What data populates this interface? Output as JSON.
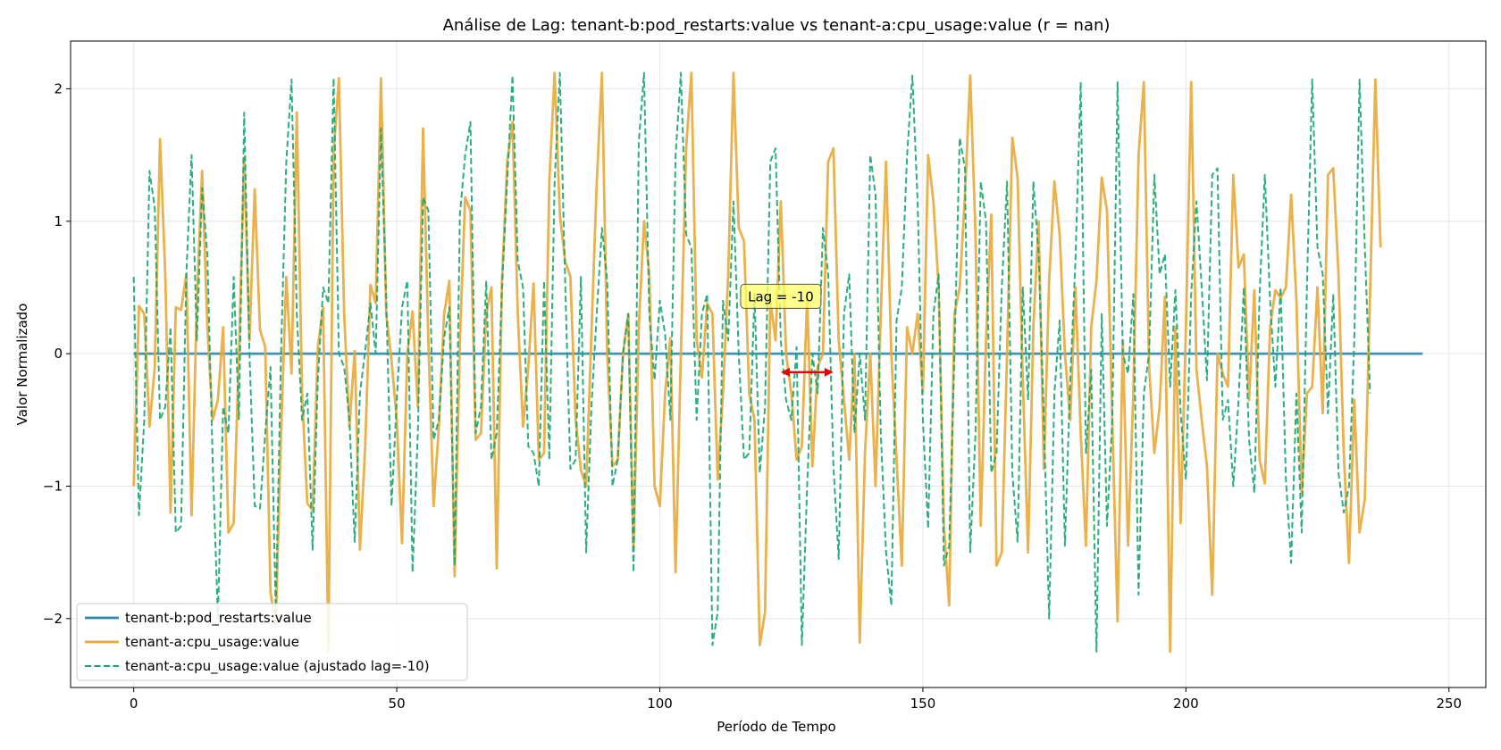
{
  "chart_data": {
    "type": "line",
    "title": "Análise de Lag: tenant-b:pod_restarts:value vs tenant-a:cpu_usage:value (r = nan)",
    "xlabel": "Período de Tempo",
    "ylabel": "Valor Normalizado",
    "xlim": [
      -12,
      257
    ],
    "ylim": [
      -2.52,
      2.36
    ],
    "xticks": [
      0,
      50,
      100,
      150,
      200,
      250
    ],
    "yticks": [
      -2,
      -1,
      0,
      1,
      2
    ],
    "xtick_labels": [
      "0",
      "50",
      "100",
      "150",
      "200",
      "250"
    ],
    "ytick_labels": [
      "−2",
      "−1",
      "0",
      "1",
      "2"
    ],
    "grid": true,
    "legend_position": "bottom-left",
    "series": [
      {
        "name": "tenant-b:pod_restarts:value",
        "color": "#2E86AB",
        "style": "solid",
        "x": [
          0,
          245
        ],
        "values": [
          0,
          0
        ]
      },
      {
        "name": "tenant-a:cpu_usage:value",
        "color": "#E8A838",
        "style": "solid",
        "x_start": 0,
        "values": [
          -1.0,
          0.36,
          0.3,
          -0.55,
          -0.1,
          1.62,
          0.6,
          -1.2,
          0.35,
          0.33,
          0.6,
          -1.22,
          0.4,
          1.38,
          0.2,
          -0.5,
          -0.35,
          0.2,
          -1.35,
          -1.28,
          0.0,
          1.48,
          0.1,
          1.24,
          0.18,
          0.05,
          -1.8,
          -2.05,
          -0.6,
          0.58,
          -0.15,
          1.82,
          -0.3,
          -1.13,
          -1.18,
          0.05,
          0.35,
          -2.25,
          1.52,
          2.08,
          0.3,
          -0.55,
          0.02,
          -1.48,
          -0.7,
          0.52,
          0.38,
          2.08,
          0.3,
          -0.05,
          -0.5,
          -1.43,
          0.0,
          0.32,
          -0.4,
          1.7,
          0.1,
          -1.15,
          -0.55,
          0.3,
          0.55,
          -1.68,
          0.1,
          1.18,
          1.08,
          -0.65,
          -0.6,
          0.3,
          0.5,
          -1.62,
          0.55,
          1.45,
          1.75,
          0.3,
          -0.55,
          -0.1,
          0.53,
          -0.8,
          -0.75,
          1.3,
          2.12,
          1.05,
          0.7,
          0.58,
          -0.5,
          -0.88,
          -1.0,
          0.15,
          1.28,
          2.12,
          0.0,
          -0.85,
          -0.8,
          0.0,
          0.3,
          -1.48,
          0.2,
          1.0,
          0.6,
          -1.0,
          -1.15,
          -0.3,
          0.12,
          -1.65,
          0.0,
          1.55,
          2.12,
          0.1,
          -0.18,
          0.38,
          0.3,
          -0.95,
          -0.3,
          0.6,
          2.12,
          0.95,
          0.85,
          -0.3,
          -0.5,
          -2.2,
          -1.95,
          0.4,
          0.1,
          1.15,
          0.0,
          -0.3,
          -0.8,
          -0.7,
          0.42,
          -0.85,
          -0.1,
          0.0,
          1.45,
          1.55,
          0.1,
          -0.35,
          -0.8,
          0.0,
          -2.18,
          -0.75,
          0.0,
          -1.0,
          0.3,
          1.45,
          0.0,
          -0.8,
          -1.6,
          0.2,
          0.0,
          0.3,
          -0.3,
          1.5,
          1.15,
          0.5,
          -1.3,
          -1.9,
          0.3,
          0.5,
          1.2,
          2.1,
          0.9,
          -1.3,
          0.1,
          1.05,
          -1.6,
          -1.5,
          0.0,
          1.63,
          1.33,
          -0.2,
          -1.5,
          0.2,
          1.0,
          -0.87,
          0.55,
          1.3,
          0.9,
          0.0,
          -0.5,
          0.5,
          -0.6,
          -1.45,
          0.2,
          0.55,
          1.33,
          1.08,
          -0.5,
          -2.02,
          0.1,
          -1.45,
          -0.3,
          1.5,
          2.05,
          -0.1,
          -0.75,
          -0.4,
          0.43,
          -2.25,
          0.2,
          -1.28,
          0.2,
          2.05,
          -0.12,
          -0.5,
          -0.85,
          -1.82,
          0.0,
          -0.15,
          -0.25,
          1.35,
          0.65,
          0.75,
          -0.35,
          0.48,
          -0.8,
          -0.98,
          0.2,
          0.48,
          0.42,
          0.5,
          1.2,
          0.4,
          -1.05,
          -0.3,
          -0.25,
          0.5,
          -0.45,
          1.35,
          1.4,
          0.6,
          -0.75,
          -1.58,
          -0.35,
          -1.35,
          -1.1,
          0.45,
          2.07,
          0.8
        ]
      },
      {
        "name": "tenant-a:cpu_usage:value (ajustado lag=-10)",
        "color": "#16A570",
        "style": "dashed",
        "x_start": 0,
        "values": [
          0.58,
          -1.22,
          -0.5,
          1.38,
          1.1,
          -0.5,
          -0.4,
          0.2,
          -1.35,
          -1.3,
          0.6,
          1.5,
          0.1,
          1.25,
          0.75,
          -0.8,
          -2.0,
          -0.4,
          -0.6,
          0.58,
          -0.5,
          1.82,
          0.0,
          -1.15,
          -1.17,
          -0.6,
          -0.1,
          -1.95,
          0.0,
          1.45,
          2.07,
          0.3,
          -0.5,
          -0.3,
          -1.48,
          -0.2,
          0.5,
          0.38,
          2.08,
          0.0,
          -0.1,
          -0.5,
          -1.42,
          -0.3,
          0.02,
          0.38,
          0.0,
          1.7,
          0.4,
          -1.15,
          -0.35,
          0.35,
          0.55,
          -1.65,
          -0.6,
          1.18,
          1.08,
          -0.65,
          -0.5,
          0.12,
          0.35,
          -1.6,
          1.05,
          1.5,
          1.75,
          -0.6,
          -0.4,
          0.55,
          -0.8,
          -0.6,
          0.5,
          1.32,
          2.1,
          0.7,
          0.5,
          -0.7,
          -0.75,
          -1.0,
          0.55,
          -0.8,
          1.3,
          2.12,
          0.55,
          -0.87,
          -0.8,
          0.58,
          -1.5,
          -0.4,
          0.3,
          0.95,
          0.55,
          -1.0,
          -0.8,
          0.0,
          0.3,
          -1.65,
          1.6,
          2.12,
          0.3,
          -0.2,
          0.4,
          0.15,
          -0.5,
          1.5,
          2.12,
          0.9,
          0.8,
          -0.5,
          0.3,
          0.45,
          -2.2,
          -1.95,
          0.4,
          0.1,
          1.15,
          0.0,
          -0.8,
          -0.75,
          0.45,
          -0.9,
          -0.4,
          1.45,
          1.55,
          0.1,
          -0.35,
          -0.5,
          0.05,
          -2.2,
          -1.0,
          0.0,
          -0.3,
          0.95,
          0.6,
          -0.85,
          -1.55,
          0.3,
          0.6,
          -0.6,
          0.0,
          -0.5,
          1.5,
          1.2,
          -0.6,
          -1.5,
          -1.9,
          0.25,
          0.5,
          1.5,
          2.1,
          1.15,
          -0.5,
          -1.32,
          0.3,
          0.6,
          -1.6,
          -1.45,
          0.0,
          1.63,
          1.4,
          -1.5,
          -0.6,
          1.3,
          1.0,
          -0.9,
          -0.75,
          0.5,
          1.3,
          -0.9,
          -1.42,
          0.5,
          -0.35,
          1.3,
          0.75,
          -0.5,
          -2.0,
          -0.3,
          0.25,
          -1.45,
          -0.2,
          0.7,
          2.05,
          -0.75,
          -0.12,
          -2.25,
          0.3,
          -1.3,
          -0.5,
          2.05,
          0.0,
          -0.15,
          0.45,
          -1.82,
          -0.3,
          0.0,
          1.35,
          0.6,
          0.75,
          -0.25,
          0.48,
          -0.45,
          -0.95,
          0.45,
          1.15,
          0.5,
          -0.2,
          1.35,
          1.4,
          -0.5,
          -0.35,
          -1.0,
          -0.35,
          0.5,
          -0.65,
          -1.05,
          0.45,
          1.35,
          0.4,
          -0.25,
          0.5,
          -0.95,
          -1.58,
          -0.3,
          -1.35,
          0.5,
          2.07,
          0.8,
          0.6,
          -0.45,
          0.45,
          -0.9,
          -1.2,
          -1.0,
          0.1,
          2.07,
          0.8,
          -0.3
        ]
      }
    ],
    "annotation": {
      "label": "Lag = -10",
      "label_x": 123,
      "label_y": 0.43,
      "arrow_from": 123,
      "arrow_to": 133,
      "arrow_y": -0.14,
      "arrow_color": "#E8000B",
      "box_color": "#FFFF66"
    }
  }
}
